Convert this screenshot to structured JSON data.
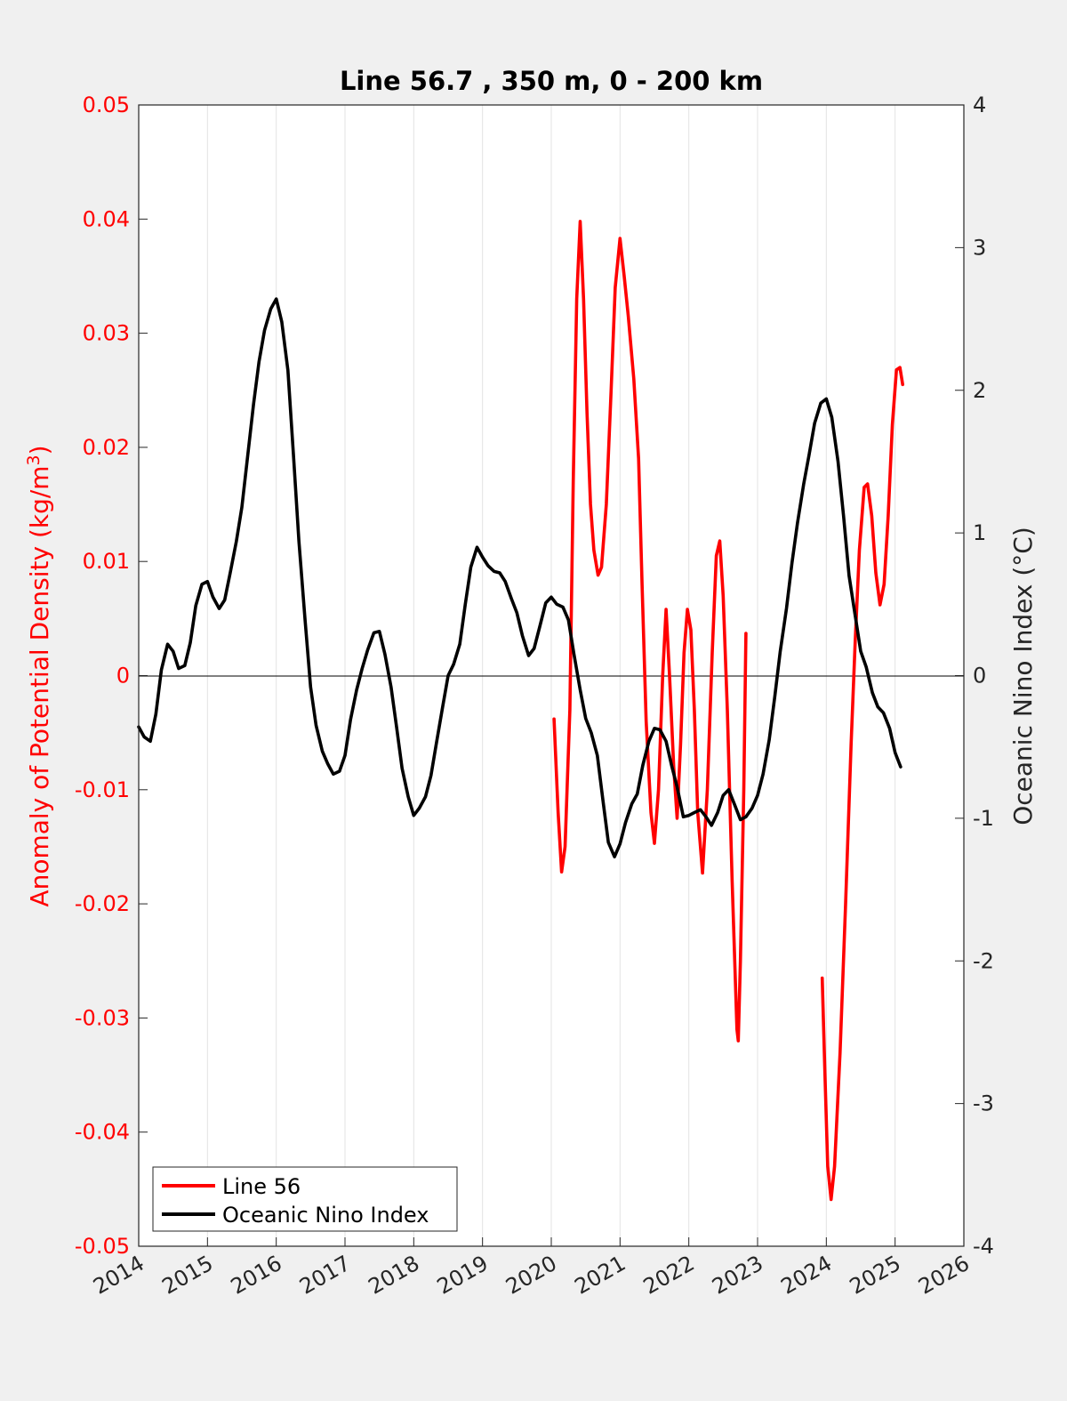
{
  "chart_data": {
    "type": "line",
    "title": "Line 56.7 , 350 m, 0 - 200 km",
    "ylabel_left": "Anomaly of Potential Density (kg/m",
    "ylabel_left_sup": "3",
    "ylabel_left_close": ")",
    "ylabel_right": "Oceanic Nino Index (°C)",
    "xlim": [
      2014,
      2026
    ],
    "ylim_left": [
      -0.05,
      0.05
    ],
    "ylim_right": [
      -4,
      4
    ],
    "x_ticks": [
      "2014",
      "2015",
      "2016",
      "2017",
      "2018",
      "2019",
      "2020",
      "2021",
      "2022",
      "2023",
      "2024",
      "2025",
      "2026"
    ],
    "y_left_ticks": [
      "0.05",
      "0.04",
      "0.03",
      "0.02",
      "0.01",
      "0",
      "-0.01",
      "-0.02",
      "-0.03",
      "-0.04",
      "-0.05"
    ],
    "y_right_ticks": [
      "4",
      "3",
      "2",
      "1",
      "0",
      "-1",
      "-2",
      "-3",
      "-4"
    ],
    "grid": "vertical",
    "legend_position": "bottom-left",
    "series": [
      {
        "name": "Line 56",
        "axis": "left",
        "color": "#ff0000",
        "segments": [
          [
            [
              2020.04,
              -0.0038
            ],
            [
              2020.1,
              -0.012
            ],
            [
              2020.15,
              -0.0172
            ],
            [
              2020.2,
              -0.015
            ],
            [
              2020.27,
              -0.003
            ],
            [
              2020.32,
              0.017
            ],
            [
              2020.37,
              0.033
            ],
            [
              2020.42,
              0.0398
            ],
            [
              2020.47,
              0.033
            ],
            [
              2020.52,
              0.023
            ],
            [
              2020.57,
              0.015
            ],
            [
              2020.62,
              0.011
            ],
            [
              2020.68,
              0.0088
            ],
            [
              2020.73,
              0.0095
            ],
            [
              2020.8,
              0.015
            ],
            [
              2020.87,
              0.025
            ],
            [
              2020.93,
              0.034
            ],
            [
              2021.0,
              0.0383
            ],
            [
              2021.06,
              0.035
            ],
            [
              2021.12,
              0.0315
            ],
            [
              2021.2,
              0.026
            ],
            [
              2021.27,
              0.019
            ],
            [
              2021.32,
              0.008
            ],
            [
              2021.38,
              -0.004
            ],
            [
              2021.45,
              -0.012
            ],
            [
              2021.5,
              -0.0147
            ],
            [
              2021.56,
              -0.01
            ],
            [
              2021.62,
              0.0
            ],
            [
              2021.67,
              0.0058
            ],
            [
              2021.72,
              0.0
            ],
            [
              2021.78,
              -0.008
            ],
            [
              2021.83,
              -0.0125
            ],
            [
              2021.88,
              -0.006
            ],
            [
              2021.93,
              0.002
            ],
            [
              2021.98,
              0.0058
            ],
            [
              2022.03,
              0.004
            ],
            [
              2022.08,
              -0.003
            ],
            [
              2022.13,
              -0.012
            ],
            [
              2022.2,
              -0.0173
            ],
            [
              2022.27,
              -0.01
            ],
            [
              2022.34,
              0.002
            ],
            [
              2022.4,
              0.0105
            ],
            [
              2022.45,
              0.0118
            ],
            [
              2022.5,
              0.007
            ],
            [
              2022.56,
              -0.003
            ],
            [
              2022.63,
              -0.018
            ],
            [
              2022.7,
              -0.031
            ],
            [
              2022.72,
              -0.032
            ],
            [
              2022.75,
              -0.025
            ],
            [
              2022.8,
              -0.01
            ],
            [
              2022.83,
              0.0037
            ]
          ],
          [
            [
              2023.94,
              -0.0265
            ],
            [
              2023.98,
              -0.035
            ],
            [
              2024.02,
              -0.043
            ],
            [
              2024.07,
              -0.0459
            ],
            [
              2024.12,
              -0.043
            ],
            [
              2024.2,
              -0.033
            ],
            [
              2024.28,
              -0.02
            ],
            [
              2024.36,
              -0.006
            ],
            [
              2024.42,
              0.003
            ],
            [
              2024.48,
              0.011
            ],
            [
              2024.55,
              0.0165
            ],
            [
              2024.6,
              0.0168
            ],
            [
              2024.66,
              0.014
            ],
            [
              2024.72,
              0.009
            ],
            [
              2024.78,
              0.0062
            ],
            [
              2024.84,
              0.008
            ],
            [
              2024.9,
              0.014
            ],
            [
              2024.96,
              0.022
            ],
            [
              2025.02,
              0.0268
            ],
            [
              2025.07,
              0.027
            ],
            [
              2025.11,
              0.0255
            ]
          ]
        ]
      },
      {
        "name": "Oceanic Nino Index",
        "axis": "right",
        "color": "#000000",
        "points": [
          [
            2014.0,
            -0.36
          ],
          [
            2014.08,
            -0.43
          ],
          [
            2014.17,
            -0.46
          ],
          [
            2014.25,
            -0.27
          ],
          [
            2014.33,
            0.04
          ],
          [
            2014.42,
            0.22
          ],
          [
            2014.5,
            0.17
          ],
          [
            2014.58,
            0.05
          ],
          [
            2014.67,
            0.07
          ],
          [
            2014.75,
            0.23
          ],
          [
            2014.83,
            0.49
          ],
          [
            2014.92,
            0.64
          ],
          [
            2015.0,
            0.66
          ],
          [
            2015.08,
            0.55
          ],
          [
            2015.17,
            0.47
          ],
          [
            2015.25,
            0.53
          ],
          [
            2015.33,
            0.72
          ],
          [
            2015.42,
            0.94
          ],
          [
            2015.5,
            1.18
          ],
          [
            2015.58,
            1.52
          ],
          [
            2015.67,
            1.9
          ],
          [
            2015.75,
            2.2
          ],
          [
            2015.83,
            2.42
          ],
          [
            2015.92,
            2.57
          ],
          [
            2016.0,
            2.64
          ],
          [
            2016.08,
            2.48
          ],
          [
            2016.17,
            2.14
          ],
          [
            2016.25,
            1.55
          ],
          [
            2016.33,
            0.94
          ],
          [
            2016.42,
            0.39
          ],
          [
            2016.5,
            -0.08
          ],
          [
            2016.58,
            -0.35
          ],
          [
            2016.67,
            -0.53
          ],
          [
            2016.75,
            -0.62
          ],
          [
            2016.83,
            -0.69
          ],
          [
            2016.92,
            -0.67
          ],
          [
            2017.0,
            -0.56
          ],
          [
            2017.08,
            -0.31
          ],
          [
            2017.17,
            -0.1
          ],
          [
            2017.25,
            0.05
          ],
          [
            2017.33,
            0.18
          ],
          [
            2017.42,
            0.3
          ],
          [
            2017.5,
            0.31
          ],
          [
            2017.58,
            0.15
          ],
          [
            2017.67,
            -0.08
          ],
          [
            2017.75,
            -0.36
          ],
          [
            2017.83,
            -0.65
          ],
          [
            2017.92,
            -0.85
          ],
          [
            2018.0,
            -0.98
          ],
          [
            2018.08,
            -0.93
          ],
          [
            2018.17,
            -0.85
          ],
          [
            2018.25,
            -0.7
          ],
          [
            2018.33,
            -0.47
          ],
          [
            2018.42,
            -0.22
          ],
          [
            2018.5,
            0.0
          ],
          [
            2018.58,
            0.08
          ],
          [
            2018.67,
            0.22
          ],
          [
            2018.75,
            0.5
          ],
          [
            2018.83,
            0.76
          ],
          [
            2018.92,
            0.9
          ],
          [
            2019.0,
            0.83
          ],
          [
            2019.08,
            0.77
          ],
          [
            2019.17,
            0.73
          ],
          [
            2019.25,
            0.72
          ],
          [
            2019.33,
            0.66
          ],
          [
            2019.42,
            0.54
          ],
          [
            2019.5,
            0.44
          ],
          [
            2019.58,
            0.28
          ],
          [
            2019.67,
            0.14
          ],
          [
            2019.75,
            0.19
          ],
          [
            2019.83,
            0.34
          ],
          [
            2019.92,
            0.51
          ],
          [
            2020.0,
            0.55
          ],
          [
            2020.08,
            0.5
          ],
          [
            2020.17,
            0.48
          ],
          [
            2020.25,
            0.39
          ],
          [
            2020.33,
            0.15
          ],
          [
            2020.42,
            -0.1
          ],
          [
            2020.5,
            -0.3
          ],
          [
            2020.58,
            -0.4
          ],
          [
            2020.67,
            -0.56
          ],
          [
            2020.75,
            -0.87
          ],
          [
            2020.83,
            -1.17
          ],
          [
            2020.92,
            -1.27
          ],
          [
            2021.0,
            -1.18
          ],
          [
            2021.08,
            -1.03
          ],
          [
            2021.17,
            -0.9
          ],
          [
            2021.25,
            -0.83
          ],
          [
            2021.33,
            -0.63
          ],
          [
            2021.42,
            -0.46
          ],
          [
            2021.5,
            -0.37
          ],
          [
            2021.58,
            -0.38
          ],
          [
            2021.67,
            -0.46
          ],
          [
            2021.75,
            -0.63
          ],
          [
            2021.83,
            -0.78
          ],
          [
            2021.92,
            -0.99
          ],
          [
            2022.0,
            -0.98
          ],
          [
            2022.08,
            -0.96
          ],
          [
            2022.17,
            -0.94
          ],
          [
            2022.25,
            -0.99
          ],
          [
            2022.33,
            -1.05
          ],
          [
            2022.42,
            -0.96
          ],
          [
            2022.5,
            -0.84
          ],
          [
            2022.58,
            -0.8
          ],
          [
            2022.67,
            -0.91
          ],
          [
            2022.75,
            -1.01
          ],
          [
            2022.83,
            -0.99
          ],
          [
            2022.92,
            -0.93
          ],
          [
            2023.0,
            -0.84
          ],
          [
            2023.08,
            -0.69
          ],
          [
            2023.17,
            -0.45
          ],
          [
            2023.25,
            -0.15
          ],
          [
            2023.33,
            0.17
          ],
          [
            2023.42,
            0.47
          ],
          [
            2023.5,
            0.79
          ],
          [
            2023.58,
            1.07
          ],
          [
            2023.67,
            1.34
          ],
          [
            2023.75,
            1.55
          ],
          [
            2023.83,
            1.77
          ],
          [
            2023.92,
            1.91
          ],
          [
            2024.0,
            1.94
          ],
          [
            2024.08,
            1.81
          ],
          [
            2024.17,
            1.5
          ],
          [
            2024.25,
            1.12
          ],
          [
            2024.33,
            0.7
          ],
          [
            2024.42,
            0.42
          ],
          [
            2024.5,
            0.17
          ],
          [
            2024.58,
            0.06
          ],
          [
            2024.67,
            -0.12
          ],
          [
            2024.75,
            -0.22
          ],
          [
            2024.83,
            -0.26
          ],
          [
            2024.92,
            -0.37
          ],
          [
            2025.0,
            -0.54
          ],
          [
            2025.08,
            -0.64
          ]
        ]
      }
    ]
  }
}
